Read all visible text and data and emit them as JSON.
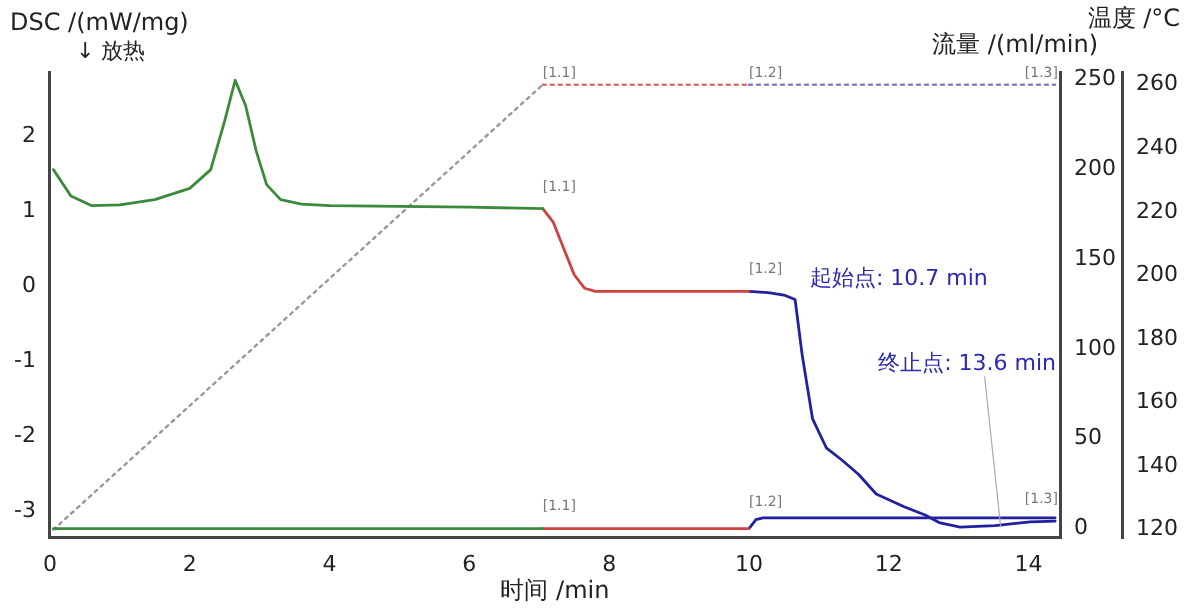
{
  "chart_data": {
    "type": "line",
    "xlabel": "时间 /min",
    "ylabel": "DSC /(mW/mg)",
    "y2label": "流量 /(ml/min)",
    "y3label": "温度 /°C",
    "xlim": [
      0,
      14.45
    ],
    "xticks": [
      0,
      2,
      4,
      6,
      8,
      10,
      12,
      14
    ],
    "ylim": [
      -3.35,
      2.85
    ],
    "yticks": [
      -3,
      -2,
      -1,
      0,
      1,
      2
    ],
    "y2lim": [
      -5,
      254
    ],
    "y2ticks": [
      0,
      50,
      100,
      150,
      200,
      250
    ],
    "y3lim": [
      117.5,
      264
    ],
    "y3ticks": [
      120,
      140,
      160,
      180,
      200,
      220,
      240,
      260
    ],
    "grid": false,
    "legend": false,
    "marker": "none",
    "series": [
      {
        "color": "#3a8a3a",
        "axis": "y",
        "line_style": "solid",
        "x": [
          0.05,
          0.3,
          0.6,
          1,
          1.5,
          2,
          2.3,
          2.5,
          2.65,
          2.8,
          2.95,
          3.1,
          3.3,
          3.6,
          4,
          5,
          6,
          7.05
        ],
        "values": [
          1.55,
          1.2,
          1.07,
          1.08,
          1.15,
          1.3,
          1.55,
          2.2,
          2.74,
          2.4,
          1.8,
          1.35,
          1.15,
          1.09,
          1.07,
          1.06,
          1.05,
          1.03
        ]
      },
      {
        "color": "#d04040",
        "axis": "y",
        "line_style": "solid",
        "x": [
          7.05,
          7.2,
          7.35,
          7.5,
          7.65,
          7.8,
          8,
          9,
          10
        ],
        "values": [
          1.03,
          0.85,
          0.5,
          0.15,
          -0.03,
          -0.07,
          -0.07,
          -0.07,
          -0.07
        ]
      },
      {
        "color": "#2020a0",
        "axis": "y",
        "line_style": "solid",
        "x": [
          10,
          10.3,
          10.5,
          10.66,
          10.76,
          10.91,
          11.11,
          11.32,
          11.57,
          11.82,
          12.22,
          12.52,
          12.72,
          13.02,
          13.52,
          14.02,
          14.38
        ],
        "values": [
          -0.07,
          -0.09,
          -0.12,
          -0.18,
          -0.91,
          -1.77,
          -2.16,
          -2.31,
          -2.51,
          -2.77,
          -2.94,
          -3.05,
          -3.15,
          -3.21,
          -3.19,
          -3.14,
          -3.13
        ]
      },
      {
        "color": "#3a8a3a",
        "axis": "y2",
        "line_style": "solid",
        "x": [
          0.05,
          7.05
        ],
        "values": [
          0,
          0
        ]
      },
      {
        "color": "#d04040",
        "axis": "y2",
        "line_style": "solid",
        "x": [
          7.05,
          10
        ],
        "values": [
          0,
          0
        ]
      },
      {
        "color": "#2020a0",
        "axis": "y2",
        "line_style": "solid",
        "x": [
          10,
          10.1,
          10.2,
          14.38
        ],
        "values": [
          0,
          5,
          6,
          6
        ]
      },
      {
        "color": "#999999",
        "axis": "y3",
        "line_style": "dotted",
        "x": [
          0.05,
          7.05
        ],
        "values": [
          120,
          260
        ]
      },
      {
        "color": "#e07070",
        "axis": "y3",
        "line_style": "dotted",
        "x": [
          7.05,
          10
        ],
        "values": [
          260,
          260
        ]
      },
      {
        "color": "#8080c0",
        "axis": "y3",
        "line_style": "dotted",
        "x": [
          10,
          14.38
        ],
        "values": [
          260,
          260
        ]
      }
    ],
    "annotations": [
      "↓ 放热",
      {
        "text": "[1.1]",
        "x": 7.05,
        "y": 2.55
      },
      {
        "text": "[1.1]",
        "x": 7.05,
        "y": 1.03
      },
      {
        "text": "[1.1]",
        "x": 7.05,
        "y": -3.22
      },
      {
        "text": "[1.2]",
        "x": 10,
        "y": 2.55
      },
      {
        "text": "[1.2]",
        "x": 10,
        "y": -0.07
      },
      {
        "text": "[1.2]",
        "x": 10,
        "y": -3.17
      },
      {
        "text": "[1.3]",
        "x": 14.3,
        "y": 2.55
      },
      {
        "text": "[1.3]",
        "x": 14.3,
        "y": -3.13
      },
      {
        "text": "起始点: 10.7 min",
        "x": 10.7,
        "y": -0.07
      },
      {
        "text": "终止点: 13.6 min",
        "x": 13.6,
        "y": -3.2
      }
    ]
  }
}
